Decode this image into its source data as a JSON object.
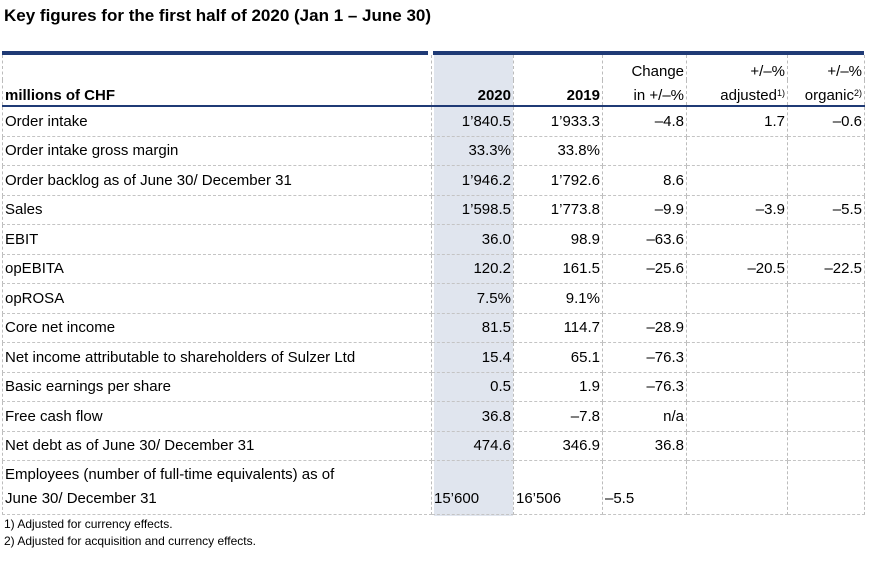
{
  "title": "Key figures for the first half of 2020 (Jan 1 – June 30)",
  "header": {
    "label": "millions of CHF",
    "col2020": "2020",
    "col2019": "2019",
    "change_top": "Change",
    "change_bottom": "in +/–%",
    "adj_top": "+/–%",
    "adj_bottom": "adjusted",
    "adj_sup": "1)",
    "org_top": "+/–%",
    "org_bottom": "organic",
    "org_sup": "2)"
  },
  "rows": [
    {
      "label": "Order intake",
      "v2020": "1’840.5",
      "v2019": "1’933.3",
      "change": "–4.8",
      "adjusted": "1.7",
      "organic": "–0.6"
    },
    {
      "label": "Order intake gross margin",
      "v2020": "33.3%",
      "v2019": "33.8%",
      "change": "",
      "adjusted": "",
      "organic": ""
    },
    {
      "label": "Order backlog as of June 30/ December 31",
      "v2020": "1’946.2",
      "v2019": "1’792.6",
      "change": "8.6",
      "adjusted": "",
      "organic": ""
    },
    {
      "label": "Sales",
      "v2020": "1’598.5",
      "v2019": "1’773.8",
      "change": "–9.9",
      "adjusted": "–3.9",
      "organic": "–5.5"
    },
    {
      "label": "EBIT",
      "v2020": "36.0",
      "v2019": "98.9",
      "change": "–63.6",
      "adjusted": "",
      "organic": ""
    },
    {
      "label": "opEBITA",
      "v2020": "120.2",
      "v2019": "161.5",
      "change": "–25.6",
      "adjusted": "–20.5",
      "organic": "–22.5"
    },
    {
      "label": "opROSA",
      "v2020": "7.5%",
      "v2019": "9.1%",
      "change": "",
      "adjusted": "",
      "organic": ""
    },
    {
      "label": "Core net income",
      "v2020": "81.5",
      "v2019": "114.7",
      "change": "–28.9",
      "adjusted": "",
      "organic": ""
    },
    {
      "label": "Net income attributable to shareholders of Sulzer Ltd",
      "v2020": "15.4",
      "v2019": "65.1",
      "change": "–76.3",
      "adjusted": "",
      "organic": ""
    },
    {
      "label": "Basic earnings per share",
      "v2020": "0.5",
      "v2019": "1.9",
      "change": "–76.3",
      "adjusted": "",
      "organic": ""
    },
    {
      "label": "Free cash flow",
      "v2020": "36.8",
      "v2019": "–7.8",
      "change": "n/a",
      "adjusted": "",
      "organic": ""
    },
    {
      "label": "Net debt as of June 30/ December 31",
      "v2020": "474.6",
      "v2019": "346.9",
      "change": "36.8",
      "adjusted": "",
      "organic": ""
    }
  ],
  "employees": {
    "label_line1": "Employees (number of full-time equivalents) as of",
    "label_line2": "June 30/ December 31",
    "v2020": "15’600",
    "v2019": "16’506",
    "change": "–5.5",
    "adjusted": "",
    "organic": ""
  },
  "footnotes": [
    "1) Adjusted for currency effects.",
    "2) Adjusted for acquisition and currency effects."
  ],
  "colors": {
    "accent": "#1f3a75",
    "shade": "#e0e5ee"
  }
}
